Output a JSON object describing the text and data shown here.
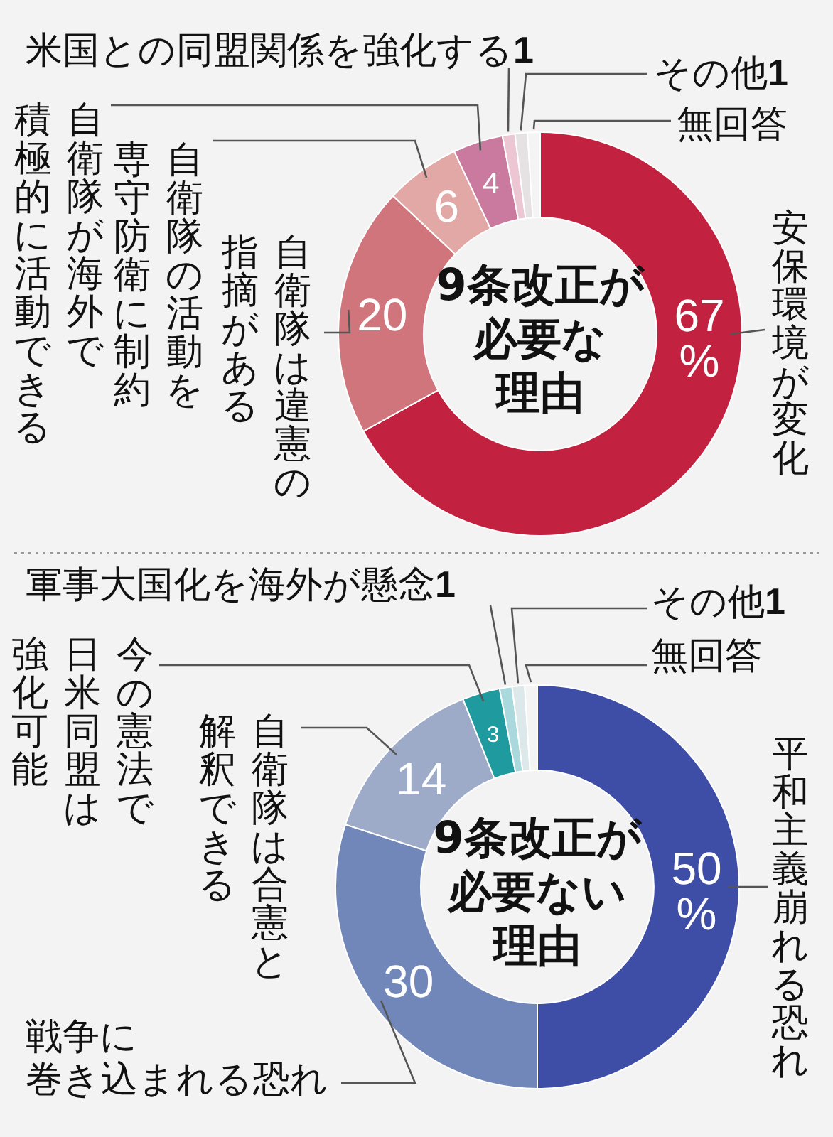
{
  "chart_data": [
    {
      "type": "donut",
      "title": "9条改正が必要な理由",
      "categories": [
        "安保環境が変化",
        "自衛隊は違憲の指摘がある",
        "自衛隊の活動を専守防衛に制約",
        "自衛隊が海外で積極的に活動できる",
        "米国との同盟関係を強化する",
        "その他",
        "無回答"
      ],
      "values": [
        67,
        20,
        6,
        4,
        1,
        1,
        1
      ],
      "value_labels": [
        "67%",
        "20",
        "6",
        "4",
        "1",
        "1",
        null
      ],
      "colors": [
        "#c2223f",
        "#d0757b",
        "#e2a8a5",
        "#c97a9e",
        "#ecc6d2",
        "#e6e2e4",
        "#f4f4f4"
      ]
    },
    {
      "type": "donut",
      "title": "9条改正が必要ない理由",
      "categories": [
        "平和主義崩れる恐れ",
        "戦争に巻き込まれる恐れ",
        "自衛隊は合憲と解釈できる",
        "今の憲法で日米同盟は強化可能",
        "軍事大国化を海外が懸念",
        "その他",
        "無回答"
      ],
      "values": [
        50,
        30,
        14,
        3,
        1,
        1,
        1
      ],
      "value_labels": [
        "50%",
        "30",
        "14",
        "3",
        "1",
        "1",
        null
      ],
      "colors": [
        "#3e4ea6",
        "#7187ba",
        "#9dabc8",
        "#1f9ba0",
        "#a9d9dd",
        "#dde8ea",
        "#f4f4f4"
      ]
    }
  ]
}
